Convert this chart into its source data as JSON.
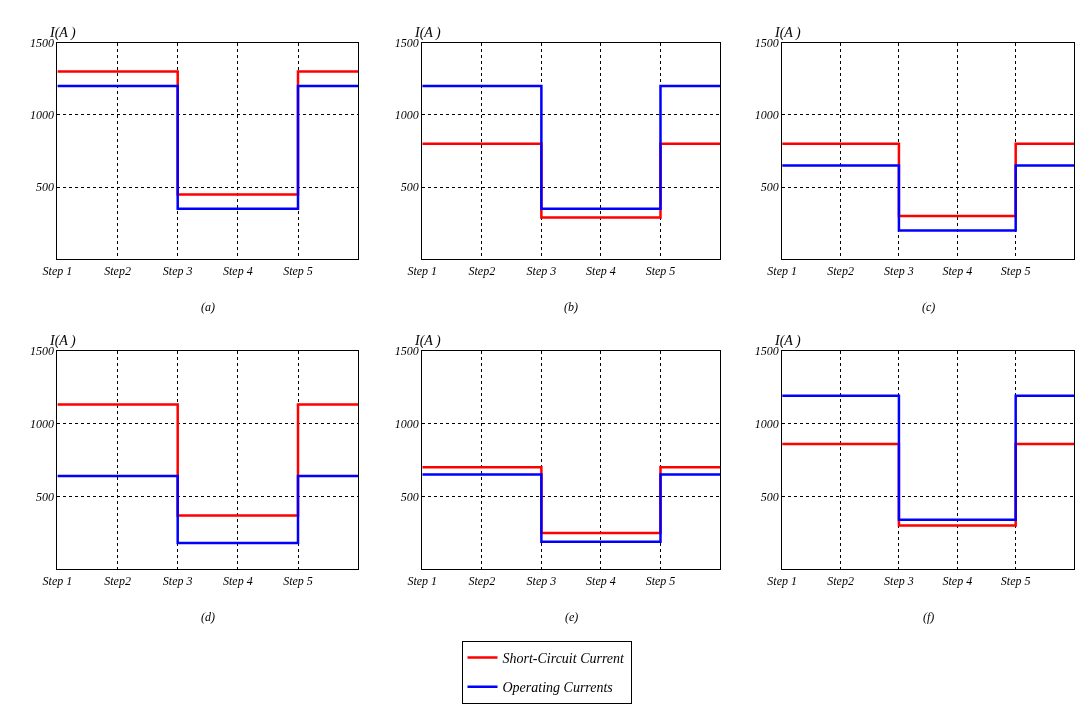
{
  "chart_data": [
    {
      "type": "step",
      "ylabel": "I(A )",
      "xlabel": "(a)",
      "categories": [
        "Step 1",
        "Step2",
        "Step 3",
        "Step 4",
        "Step 5",
        null
      ],
      "ylim": [
        0,
        1500
      ],
      "yticks": [
        500,
        1000,
        1500
      ],
      "grid": true,
      "legend": "bottom",
      "series": [
        {
          "name": "Short-Circuit Current",
          "color": "#ff0000",
          "values": [
            1300,
            1300,
            450,
            450,
            1300,
            1300
          ]
        },
        {
          "name": "Operating Currents",
          "color": "#0000ff",
          "values": [
            1200,
            1200,
            350,
            350,
            1200,
            1200
          ]
        }
      ]
    },
    {
      "type": "step",
      "ylabel": "I(A )",
      "xlabel": "(b)",
      "categories": [
        "Step 1",
        "Step2",
        "Step 3",
        "Step 4",
        "Step 5",
        null
      ],
      "ylim": [
        0,
        1500
      ],
      "yticks": [
        500,
        1000,
        1500
      ],
      "grid": true,
      "legend": "bottom",
      "series": [
        {
          "name": "Short-Circuit Current",
          "color": "#ff0000",
          "values": [
            800,
            800,
            290,
            290,
            800,
            800
          ]
        },
        {
          "name": "Operating Currents",
          "color": "#0000ff",
          "values": [
            1200,
            1200,
            350,
            350,
            1200,
            1200
          ]
        }
      ]
    },
    {
      "type": "step",
      "ylabel": "I(A )",
      "xlabel": "(c)",
      "categories": [
        "Step 1",
        "Step2",
        "Step 3",
        "Step 4",
        "Step 5",
        null
      ],
      "ylim": [
        0,
        1500
      ],
      "yticks": [
        500,
        1000,
        1500
      ],
      "grid": true,
      "legend": "bottom",
      "series": [
        {
          "name": "Short-Circuit Current",
          "color": "#ff0000",
          "values": [
            800,
            800,
            300,
            300,
            800,
            800
          ]
        },
        {
          "name": "Operating Currents",
          "color": "#0000ff",
          "values": [
            650,
            650,
            200,
            200,
            650,
            650
          ]
        }
      ]
    },
    {
      "type": "step",
      "ylabel": "I(A )",
      "xlabel": "(d)",
      "categories": [
        "Step 1",
        "Step2",
        "Step 3",
        "Step 4",
        "Step 5",
        null
      ],
      "ylim": [
        0,
        1500
      ],
      "yticks": [
        500,
        1000,
        1500
      ],
      "grid": true,
      "legend": "bottom",
      "series": [
        {
          "name": "Short-Circuit Current",
          "color": "#ff0000",
          "values": [
            1130,
            1130,
            370,
            370,
            1130,
            1130
          ]
        },
        {
          "name": "Operating Currents",
          "color": "#0000ff",
          "values": [
            640,
            640,
            180,
            180,
            640,
            640
          ]
        }
      ]
    },
    {
      "type": "step",
      "ylabel": "I(A )",
      "xlabel": "(e)",
      "categories": [
        "Step 1",
        "Step2",
        "Step 3",
        "Step 4",
        "Step 5",
        null
      ],
      "ylim": [
        0,
        1500
      ],
      "yticks": [
        500,
        1000,
        1500
      ],
      "grid": true,
      "legend": "bottom",
      "series": [
        {
          "name": "Short-Circuit Current",
          "color": "#ff0000",
          "values": [
            700,
            700,
            250,
            250,
            700,
            700
          ]
        },
        {
          "name": "Operating Currents",
          "color": "#0000ff",
          "values": [
            650,
            650,
            190,
            190,
            650,
            650
          ]
        }
      ]
    },
    {
      "type": "step",
      "ylabel": "I(A )",
      "xlabel": "(f)",
      "categories": [
        "Step 1",
        "Step2",
        "Step 3",
        "Step 4",
        "Step 5",
        null
      ],
      "ylim": [
        0,
        1500
      ],
      "yticks": [
        500,
        1000,
        1500
      ],
      "grid": true,
      "legend": "bottom",
      "series": [
        {
          "name": "Short-Circuit Current",
          "color": "#ff0000",
          "values": [
            860,
            860,
            300,
            300,
            860,
            860
          ]
        },
        {
          "name": "Operating Currents",
          "color": "#0000ff",
          "values": [
            1190,
            1190,
            340,
            340,
            1190,
            1190
          ]
        }
      ]
    }
  ]
}
